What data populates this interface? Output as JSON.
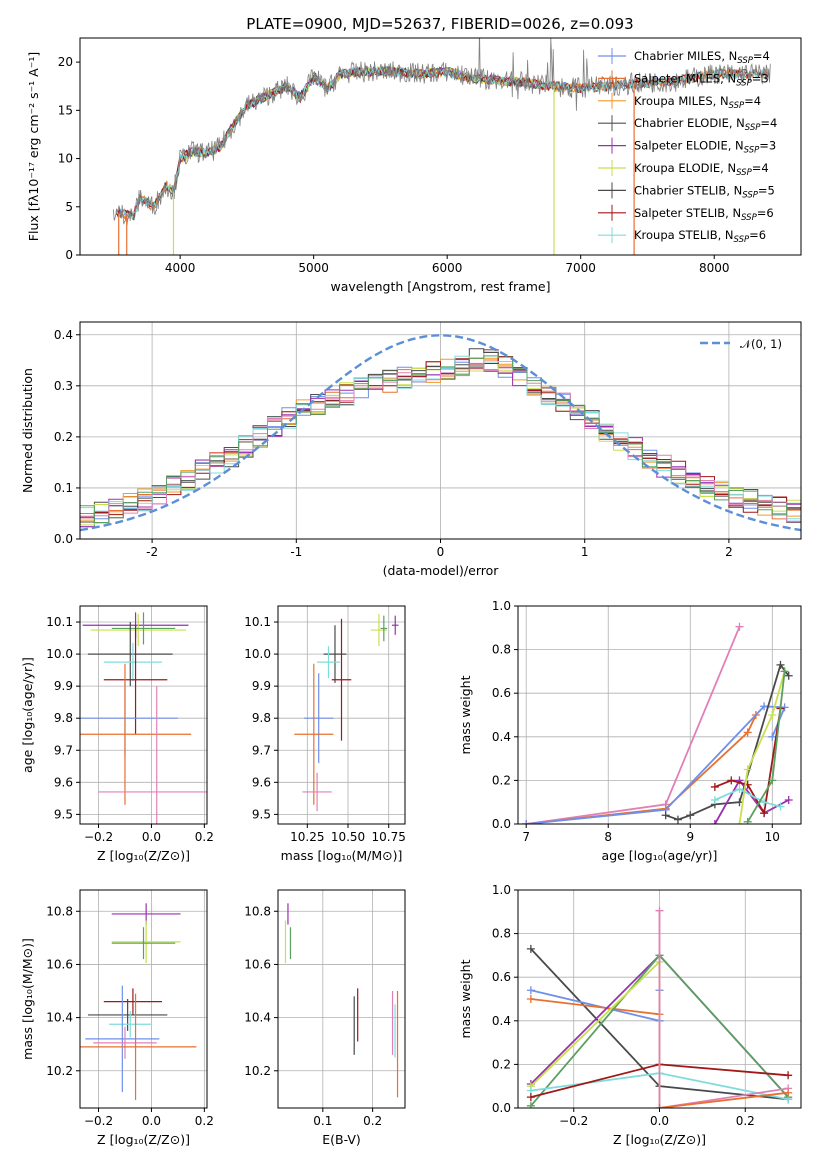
{
  "figure_title": "PLATE=0900, MJD=52637, FIBERID=0026, z=0.093",
  "colors": {
    "Chabrier MILES": "#6f8fe8",
    "Salpeter MILES": "#e87030",
    "Kroupa MILES": "#f09a2a",
    "Chabrier ELODIE": "#505050",
    "Salpeter ELODIE": "#9a30b0",
    "Kroupa ELODIE": "#c8e050",
    "Chabrier STELIB": "#4a4a4a",
    "Salpeter STELIB": "#a01818",
    "Kroupa STELIB": "#80dcdc",
    "pink": "#e080b8",
    "green": "#5aa060",
    "data": "#808080",
    "gauss": "#5b8fd8"
  },
  "chart_data": [
    {
      "type": "line",
      "id": "spectrum",
      "xlabel": "wavelength [Angstrom, rest frame]",
      "ylabel": "Flux [fλ10⁻¹⁷ erg cm⁻² s⁻¹ A⁻¹]",
      "xlim": [
        3250,
        8650
      ],
      "ylim": [
        0,
        22.5
      ],
      "xticks": [
        4000,
        5000,
        6000,
        7000,
        8000
      ],
      "yticks": [
        0,
        5,
        10,
        15,
        20
      ],
      "grid": false,
      "legend_position": "right",
      "legend": [
        {
          "label": "Chabrier MILES, N",
          "sub": "SSP",
          "tail": "=4"
        },
        {
          "label": "Salpeter MILES, N",
          "sub": "SSP",
          "tail": "=3"
        },
        {
          "label": "Kroupa MILES, N",
          "sub": "SSP",
          "tail": "=4"
        },
        {
          "label": "Chabrier ELODIE, N",
          "sub": "SSP",
          "tail": "=4"
        },
        {
          "label": "Salpeter ELODIE, N",
          "sub": "SSP",
          "tail": "=3"
        },
        {
          "label": "Kroupa ELODIE, N",
          "sub": "SSP",
          "tail": "=4"
        },
        {
          "label": "Chabrier STELIB, N",
          "sub": "SSP",
          "tail": "=5"
        },
        {
          "label": "Salpeter STELIB, N",
          "sub": "SSP",
          "tail": "=6"
        },
        {
          "label": "Kroupa STELIB, N",
          "sub": "SSP",
          "tail": "=6"
        }
      ],
      "continuum": {
        "x": [
          3500,
          3650,
          3700,
          3800,
          3900,
          3950,
          4000,
          4100,
          4200,
          4300,
          4400,
          4500,
          4600,
          4800,
          4900,
          5000,
          5100,
          5200,
          5400,
          5600,
          5800,
          6000,
          6200,
          6500,
          6800,
          7000,
          7200,
          7400,
          7700,
          8000,
          8400,
          8650
        ],
        "y": [
          4.5,
          4.0,
          6.0,
          5.0,
          7.2,
          6.5,
          10.0,
          10.8,
          10.5,
          11.2,
          13.5,
          15.5,
          16.2,
          17.5,
          16.3,
          18.5,
          17.2,
          18.8,
          19.0,
          19.0,
          18.8,
          19.0,
          18.3,
          18.0,
          17.5,
          17.3,
          17.5,
          17.8,
          18.0,
          18.8,
          18.8,
          18.5
        ]
      }
    },
    {
      "type": "histogram",
      "id": "residuals",
      "xlabel": "(data-model)/error",
      "ylabel": "Normed distribution",
      "xlim": [
        -2.5,
        2.5
      ],
      "ylim": [
        0,
        0.425
      ],
      "xticks": [
        -2,
        -1,
        0,
        1,
        2
      ],
      "yticks": [
        0.0,
        0.1,
        0.2,
        0.3,
        0.4
      ],
      "grid": true,
      "legend": "𝒩(0, 1)",
      "legend_position": "top-right",
      "bin_width": 0.1,
      "envelope": {
        "x": [
          -2.5,
          -2.0,
          -1.5,
          -1.0,
          -0.5,
          0.0,
          0.3,
          0.5,
          1.0,
          1.5,
          2.0,
          2.5
        ],
        "y": [
          0.04,
          0.08,
          0.155,
          0.245,
          0.3,
          0.33,
          0.355,
          0.33,
          0.24,
          0.15,
          0.085,
          0.05
        ]
      }
    },
    {
      "type": "scatter",
      "id": "age-vs-Z",
      "xlabel": "Z [log₁₀(Z/Z⊙)]",
      "ylabel": "age  [log₁₀(age/yr)]",
      "xlim": [
        -0.27,
        0.21
      ],
      "ylim": [
        9.47,
        10.15
      ],
      "xticks": [
        -0.2,
        0.0,
        0.2
      ],
      "xticklabels": [
        "−0.2",
        "0.0",
        "0.2"
      ],
      "yticks": [
        9.5,
        9.6,
        9.7,
        9.8,
        9.9,
        10.0,
        10.1
      ],
      "grid": true,
      "points": [
        {
          "x": -0.06,
          "y": 10.09,
          "xerr": 0.2,
          "yerr": 0.04,
          "c": "Salpeter ELODIE"
        },
        {
          "x": -0.05,
          "y": 10.075,
          "xerr": 0.18,
          "yerr": 0.05,
          "c": "Kroupa ELODIE"
        },
        {
          "x": -0.03,
          "y": 10.08,
          "xerr": 0.12,
          "yerr": 0.05,
          "c": "green"
        },
        {
          "x": -0.08,
          "y": 10.0,
          "xerr": 0.16,
          "yerr": 0.1,
          "c": "Chabrier STELIB"
        },
        {
          "x": -0.07,
          "y": 9.975,
          "xerr": 0.11,
          "yerr": 0.06,
          "c": "Kroupa STELIB"
        },
        {
          "x": -0.06,
          "y": 9.92,
          "xerr": 0.12,
          "yerr": 0.17,
          "c": "Salpeter STELIB"
        },
        {
          "x": -0.1,
          "y": 9.8,
          "xerr": 0.2,
          "yerr": 0.12,
          "c": "Chabrier MILES"
        },
        {
          "x": -0.1,
          "y": 9.75,
          "xerr": 0.25,
          "yerr": 0.22,
          "c": "Salpeter MILES"
        },
        {
          "x": 0.02,
          "y": 9.57,
          "xerr": 0.22,
          "yerr": 0.33,
          "c": "pink"
        }
      ]
    },
    {
      "type": "scatter",
      "id": "age-vs-mass",
      "xlabel": "mass [log₁₀(M/M⊙)]",
      "ylabel": "",
      "xlim": [
        10.07,
        10.85
      ],
      "ylim": [
        9.47,
        10.15
      ],
      "xticks": [
        10.25,
        10.5,
        10.75
      ],
      "xticklabels": [
        "10.25",
        "10.50",
        "10.75"
      ],
      "yticks": [
        9.5,
        9.6,
        9.7,
        9.8,
        9.9,
        10.0,
        10.1
      ],
      "grid": true,
      "points": [
        {
          "x": 10.79,
          "y": 10.09,
          "xerr": 0.02,
          "yerr": 0.03,
          "c": "Salpeter ELODIE"
        },
        {
          "x": 10.69,
          "y": 10.075,
          "xerr": 0.05,
          "yerr": 0.05,
          "c": "Kroupa ELODIE"
        },
        {
          "x": 10.72,
          "y": 10.08,
          "xerr": 0.02,
          "yerr": 0.04,
          "c": "green"
        },
        {
          "x": 10.42,
          "y": 10.0,
          "xerr": 0.07,
          "yerr": 0.09,
          "c": "Chabrier STELIB"
        },
        {
          "x": 10.38,
          "y": 9.975,
          "xerr": 0.07,
          "yerr": 0.05,
          "c": "Kroupa STELIB"
        },
        {
          "x": 10.46,
          "y": 9.92,
          "xerr": 0.06,
          "yerr": 0.19,
          "c": "Salpeter STELIB"
        },
        {
          "x": 10.32,
          "y": 9.8,
          "xerr": 0.09,
          "yerr": 0.14,
          "c": "Chabrier MILES"
        },
        {
          "x": 10.29,
          "y": 9.75,
          "xerr": 0.12,
          "yerr": 0.22,
          "c": "Salpeter MILES"
        },
        {
          "x": 10.31,
          "y": 9.57,
          "xerr": 0.09,
          "yerr": 0.06,
          "c": "pink"
        }
      ]
    },
    {
      "type": "line",
      "id": "massweight-vs-age",
      "xlabel": "age  [log₁₀(age/yr)]",
      "ylabel": "mass weight",
      "xlim": [
        6.9,
        10.35
      ],
      "ylim": [
        0,
        1.0
      ],
      "xticks": [
        7,
        8,
        9,
        10
      ],
      "yticks": [
        0.0,
        0.2,
        0.4,
        0.6,
        0.8,
        1.0
      ],
      "grid": true,
      "series": [
        {
          "c": "pink",
          "x": [
            7.0,
            8.7,
            9.6
          ],
          "y": [
            0.0,
            0.09,
            0.905
          ]
        },
        {
          "c": "Salpeter MILES",
          "x": [
            7.0,
            8.7,
            9.7,
            9.8
          ],
          "y": [
            0.0,
            0.07,
            0.42,
            0.5
          ]
        },
        {
          "c": "Chabrier MILES",
          "x": [
            7.0,
            8.7,
            9.9,
            10.15,
            10.0
          ],
          "y": [
            0.0,
            0.065,
            0.54,
            0.535,
            0.4
          ]
        },
        {
          "c": "Chabrier STELIB",
          "x": [
            8.7,
            8.85,
            9.0,
            9.3,
            9.6,
            10.1,
            10.2
          ],
          "y": [
            0.04,
            0.02,
            0.04,
            0.09,
            0.1,
            0.73,
            0.68
          ]
        },
        {
          "c": "Salpeter ELODIE",
          "x": [
            9.3,
            9.6,
            9.9,
            10.2
          ],
          "y": [
            0.0,
            0.2,
            0.05,
            0.11
          ]
        },
        {
          "c": "Salpeter STELIB",
          "x": [
            9.3,
            9.5,
            9.7,
            9.9,
            10.1
          ],
          "y": [
            0.17,
            0.2,
            0.18,
            0.05,
            0.53
          ]
        },
        {
          "c": "Kroupa ELODIE",
          "x": [
            9.6,
            9.7,
            10.0,
            10.15
          ],
          "y": [
            0.0,
            0.25,
            0.5,
            0.7
          ]
        },
        {
          "c": "Kroupa STELIB",
          "x": [
            9.3,
            9.6,
            9.9,
            10.1
          ],
          "y": [
            0.11,
            0.16,
            0.1,
            0.08
          ]
        },
        {
          "c": "green",
          "x": [
            9.7,
            10.0,
            10.15
          ],
          "y": [
            0.01,
            0.2,
            0.7
          ]
        }
      ]
    },
    {
      "type": "scatter",
      "id": "mass-vs-Z",
      "xlabel": "Z [log₁₀(Z/Z⊙)]",
      "ylabel": "mass [log₁₀(M/M⊙)]",
      "xlim": [
        -0.27,
        0.21
      ],
      "ylim": [
        10.06,
        10.88
      ],
      "xticks": [
        -0.2,
        0.0,
        0.2
      ],
      "xticklabels": [
        "−0.2",
        "0.0",
        "0.2"
      ],
      "yticks": [
        10.2,
        10.4,
        10.6,
        10.8
      ],
      "grid": true,
      "points": [
        {
          "x": -0.02,
          "y": 10.79,
          "xerr": 0.13,
          "yerr": 0.04,
          "c": "Salpeter ELODIE"
        },
        {
          "x": -0.02,
          "y": 10.685,
          "xerr": 0.13,
          "yerr": 0.08,
          "c": "Kroupa ELODIE"
        },
        {
          "x": -0.03,
          "y": 10.68,
          "xerr": 0.12,
          "yerr": 0.06,
          "c": "green"
        },
        {
          "x": -0.07,
          "y": 10.46,
          "xerr": 0.11,
          "yerr": 0.05,
          "c": "Salpeter STELIB"
        },
        {
          "x": -0.09,
          "y": 10.41,
          "xerr": 0.15,
          "yerr": 0.06,
          "c": "Chabrier STELIB"
        },
        {
          "x": -0.08,
          "y": 10.375,
          "xerr": 0.08,
          "yerr": 0.05,
          "c": "Kroupa STELIB"
        },
        {
          "x": -0.11,
          "y": 10.32,
          "xerr": 0.14,
          "yerr": 0.2,
          "c": "Chabrier MILES"
        },
        {
          "x": -0.1,
          "y": 10.305,
          "xerr": 0.12,
          "yerr": 0.06,
          "c": "pink"
        },
        {
          "x": -0.06,
          "y": 10.29,
          "xerr": 0.23,
          "yerr": 0.2,
          "c": "Salpeter MILES"
        }
      ]
    },
    {
      "type": "scatter",
      "id": "mass-vs-EBV",
      "xlabel": "E(B-V)",
      "ylabel": "",
      "xlim": [
        0.01,
        0.265
      ],
      "ylim": [
        10.06,
        10.88
      ],
      "xticks": [
        0.1,
        0.2
      ],
      "xticklabels": [
        "0.1",
        "0.2"
      ],
      "yticks": [
        10.2,
        10.4,
        10.6,
        10.8
      ],
      "grid": true,
      "points": [
        {
          "x": 0.03,
          "y": 10.79,
          "xerr": 0.0,
          "yerr": 0.04,
          "c": "Salpeter ELODIE"
        },
        {
          "x": 0.025,
          "y": 10.685,
          "xerr": 0.0,
          "yerr": 0.08,
          "c": "Kroupa ELODIE"
        },
        {
          "x": 0.035,
          "y": 10.68,
          "xerr": 0.0,
          "yerr": 0.06,
          "c": "green"
        },
        {
          "x": 0.17,
          "y": 10.41,
          "xerr": 0.0,
          "yerr": 0.1,
          "c": "Salpeter STELIB"
        },
        {
          "x": 0.163,
          "y": 10.37,
          "xerr": 0.0,
          "yerr": 0.11,
          "c": "Chabrier STELIB"
        },
        {
          "x": 0.245,
          "y": 10.35,
          "xerr": 0.0,
          "yerr": 0.1,
          "c": "Kroupa STELIB"
        },
        {
          "x": 0.25,
          "y": 10.3,
          "xerr": 0.0,
          "yerr": 0.2,
          "c": "Salpeter MILES"
        },
        {
          "x": 0.24,
          "y": 10.38,
          "xerr": 0.0,
          "yerr": 0.12,
          "c": "pink"
        }
      ]
    },
    {
      "type": "line",
      "id": "massweight-vs-Z",
      "xlabel": "Z [log₁₀(Z/Z⊙)]",
      "ylabel": "mass weight",
      "xlim": [
        -0.33,
        0.33
      ],
      "ylim": [
        0,
        1.0
      ],
      "xticks": [
        -0.2,
        0.0,
        0.2
      ],
      "xticklabels": [
        "−0.2",
        "0.0",
        "0.2"
      ],
      "yticks": [
        0.0,
        0.2,
        0.4,
        0.6,
        0.8,
        1.0
      ],
      "grid": true,
      "series": [
        {
          "c": "Chabrier STELIB",
          "x": [
            -0.3,
            0.0,
            0.3
          ],
          "y": [
            0.73,
            0.1,
            0.04
          ]
        },
        {
          "c": "Chabrier MILES",
          "x": [
            -0.3,
            0.0,
            0.0
          ],
          "y": [
            0.54,
            0.4,
            0.54
          ]
        },
        {
          "c": "Salpeter MILES",
          "x": [
            -0.3,
            0.0
          ],
          "y": [
            0.5,
            0.43
          ]
        },
        {
          "c": "Salpeter ELODIE",
          "x": [
            -0.3,
            0.0,
            0.3
          ],
          "y": [
            0.11,
            0.7,
            0.05
          ]
        },
        {
          "c": "green",
          "x": [
            -0.3,
            0.0,
            0.3
          ],
          "y": [
            0.01,
            0.7,
            0.05
          ]
        },
        {
          "c": "Kroupa ELODIE",
          "x": [
            -0.3,
            0.0,
            0.0
          ],
          "y": [
            0.1,
            0.67,
            0.0
          ]
        },
        {
          "c": "Kroupa STELIB",
          "x": [
            -0.3,
            0.0,
            0.3
          ],
          "y": [
            0.08,
            0.16,
            0.04
          ]
        },
        {
          "c": "Salpeter STELIB",
          "x": [
            -0.3,
            0.0,
            0.3
          ],
          "y": [
            0.05,
            0.2,
            0.15
          ]
        },
        {
          "c": "pink",
          "x": [
            0.0,
            0.0,
            0.3
          ],
          "y": [
            0.905,
            0.0,
            0.09
          ]
        },
        {
          "c": "Salpeter MILES",
          "x": [
            0.0,
            0.3
          ],
          "y": [
            0.0,
            0.07
          ]
        }
      ]
    }
  ]
}
